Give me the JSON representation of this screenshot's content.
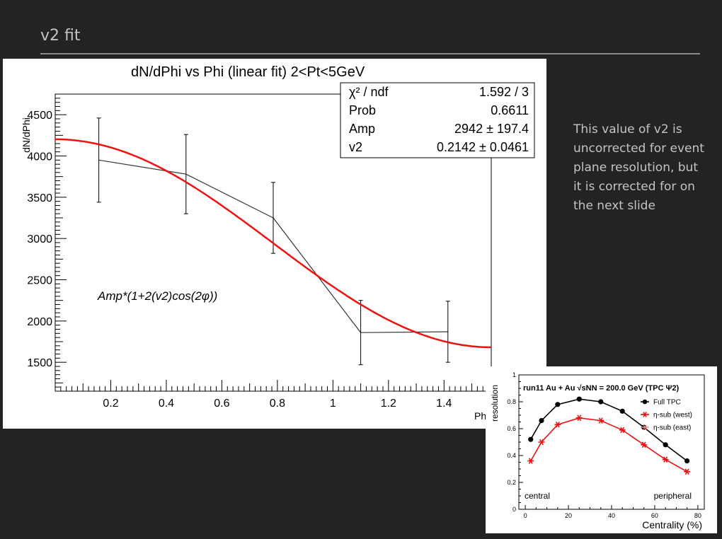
{
  "slide": {
    "title": "v2 fit",
    "note": "This value of v2 is uncorrected for event plane resolution, but it is corrected for on the next slide"
  },
  "chart_data": [
    {
      "type": "scatter",
      "title": "dN/dPhi vs Phi (linear fit) 2<Pt<5GeV",
      "xlabel": "Phi",
      "ylabel": "dN/dPhi",
      "xlim": [
        0,
        1.57
      ],
      "ylim": [
        1150,
        4750
      ],
      "xticks": [
        "0.2",
        "0.4",
        "0.6",
        "0.8",
        "1",
        "1.2",
        "1.4"
      ],
      "yticks": [
        "1500",
        "2000",
        "2500",
        "3000",
        "3500",
        "4000",
        "4500"
      ],
      "series": [
        {
          "x": [
            0.157,
            0.471,
            0.785,
            1.1,
            1.414
          ],
          "y": [
            3950,
            3780,
            3250,
            1860,
            1870
          ],
          "err": [
            510,
            480,
            430,
            390,
            370
          ],
          "color": "#333333"
        }
      ],
      "fit": {
        "formula": "Amp*(1+2(v2)cos(2φ))",
        "amp": 2942,
        "v2": 0.2142,
        "color": "#ee1111"
      },
      "stats": [
        {
          "label": "χ² / ndf",
          "value": "1.592 / 3"
        },
        {
          "label": "Prob",
          "value": "0.6611"
        },
        {
          "label": "Amp",
          "value": "2942 ± 197.4"
        },
        {
          "label": "v2",
          "value": "0.2142 ± 0.0461"
        }
      ],
      "grid": false
    },
    {
      "type": "line",
      "title": "run11 Au + Au √sNN = 200.0 GeV (TPC Ψ2)",
      "xlabel": "Centrality (%)",
      "ylabel": "resolution",
      "xlim": [
        -3,
        83
      ],
      "ylim": [
        0,
        1
      ],
      "xticks": [
        "0",
        "20",
        "40",
        "60",
        "80"
      ],
      "yticks": [
        "0",
        "0.2",
        "0.4",
        "0.6",
        "0.8",
        "1"
      ],
      "x": [
        2.5,
        7.5,
        15,
        25,
        35,
        45,
        55,
        65,
        75
      ],
      "series": [
        {
          "name": "Full TPC",
          "values": [
            0.52,
            0.66,
            0.78,
            0.82,
            0.8,
            0.73,
            0.61,
            0.48,
            0.36
          ],
          "color": "#000000",
          "marker": "circle"
        },
        {
          "name": "η-sub (west)",
          "values": [
            0.36,
            0.5,
            0.63,
            0.68,
            0.66,
            0.59,
            0.48,
            0.37,
            0.28
          ],
          "color": "#ee1111",
          "marker": "star"
        },
        {
          "name": "η-sub (east)",
          "values": [
            0.36,
            0.5,
            0.63,
            0.68,
            0.66,
            0.59,
            0.48,
            0.37,
            0.28
          ],
          "color": "#ff8888",
          "marker": "open-star"
        }
      ],
      "annotations": [
        "central",
        "peripheral"
      ],
      "legend": "top-right",
      "grid": false
    }
  ]
}
